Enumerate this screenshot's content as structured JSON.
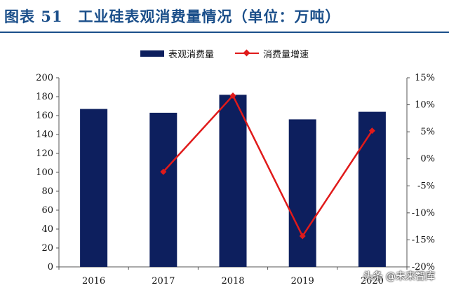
{
  "figure": {
    "title": "图表 51　工业硅表观消费量情况（单位：万吨）",
    "watermark": "头条 @未来智库"
  },
  "colors": {
    "bar": "#0d1f5e",
    "line": "#e01a1a",
    "title": "#1b4f8a"
  },
  "chart_data": {
    "type": "bar",
    "title": "工业硅表观消费量情况（单位：万吨）",
    "categories": [
      "2016",
      "2017",
      "2018",
      "2019",
      "2020"
    ],
    "series": [
      {
        "name": "表观消费量",
        "type": "bar",
        "axis": "left",
        "values": [
          167,
          163,
          182,
          156,
          164
        ]
      },
      {
        "name": "消费量增速",
        "type": "line",
        "axis": "right",
        "marker": "diamond",
        "values": [
          null,
          -2.4,
          11.7,
          -14.3,
          5.2
        ]
      }
    ],
    "y_left": {
      "ylim": [
        0,
        200
      ],
      "ticks": [
        0,
        20,
        40,
        60,
        80,
        100,
        120,
        140,
        160,
        180,
        200
      ],
      "tick_labels": [
        "0",
        "20",
        "40",
        "60",
        "80",
        "100",
        "120",
        "140",
        "160",
        "180",
        "200"
      ]
    },
    "y_right": {
      "ylim": [
        -20,
        15
      ],
      "ticks": [
        -20,
        -15,
        -10,
        -5,
        0,
        5,
        10,
        15
      ],
      "tick_labels": [
        "-20%",
        "-15%",
        "-10%",
        "-5%",
        "0%",
        "5%",
        "10%",
        "15%"
      ]
    },
    "grid": false,
    "legend_position": "top-center"
  }
}
